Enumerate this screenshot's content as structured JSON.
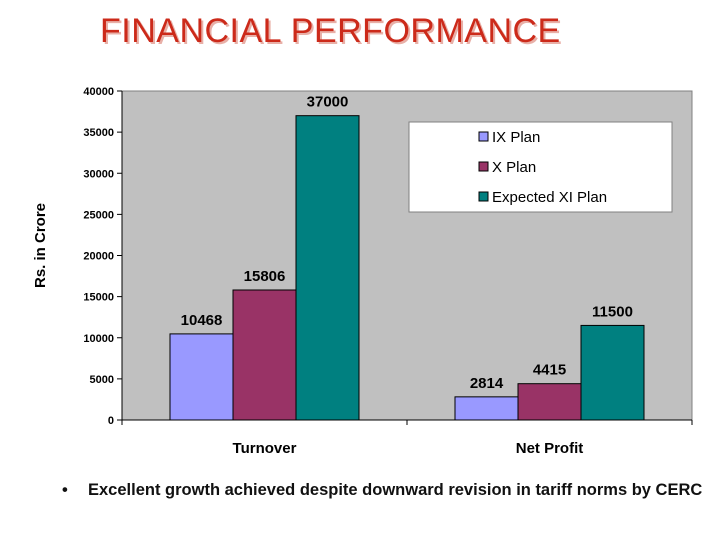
{
  "slide": {
    "title": "FINANCIAL PERFORMANCE",
    "bullet_symbol": "•",
    "bullet_text": "Excellent growth achieved despite downward revision in tariff norms by CERC"
  },
  "chart_data": {
    "type": "bar",
    "title": "",
    "xlabel": "",
    "ylabel": "Rs. in Crore",
    "ylim": [
      0,
      40000
    ],
    "yticks": [
      0,
      5000,
      10000,
      15000,
      20000,
      25000,
      30000,
      35000,
      40000
    ],
    "categories": [
      "Turnover",
      "Net Profit"
    ],
    "series": [
      {
        "name": "IX Plan",
        "values": [
          10468,
          2814
        ],
        "color": "#9999ff"
      },
      {
        "name": "X Plan",
        "values": [
          15806,
          4415
        ],
        "color": "#993366"
      },
      {
        "name": "Expected XI Plan",
        "values": [
          37000,
          11500
        ],
        "color": "#008080"
      }
    ],
    "legend_position": "top-right",
    "plot_background": "#c0c0c0",
    "grid": false
  }
}
